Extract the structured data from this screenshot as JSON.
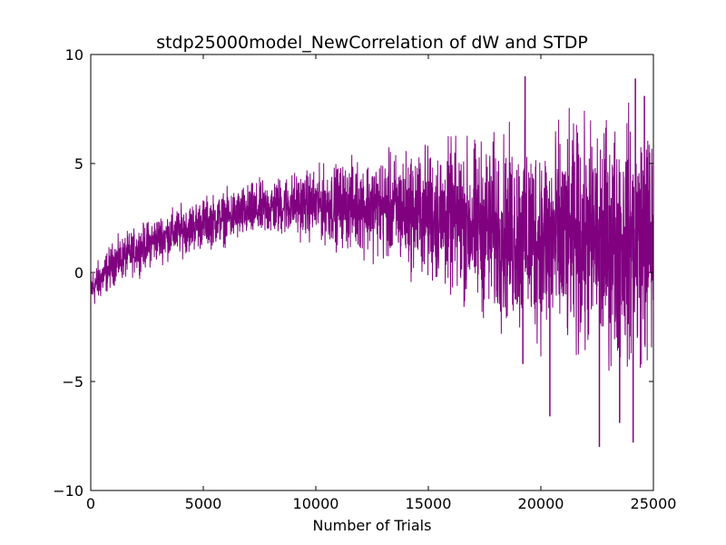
{
  "chart_data": {
    "type": "line",
    "title": "stdp25000model_NewCorrelation of dW and STDP",
    "xlabel": "Number of Trials",
    "ylabel": "",
    "xlim": [
      0,
      25000
    ],
    "ylim": [
      -10,
      10
    ],
    "xticks": [
      0,
      5000,
      10000,
      15000,
      20000,
      25000
    ],
    "yticks": [
      -10,
      -5,
      0,
      5,
      10
    ],
    "xtick_labels": [
      "0",
      "5000",
      "10000",
      "15000",
      "20000",
      "25000"
    ],
    "ytick_labels": [
      "−10",
      "−5",
      "0",
      "5",
      "10"
    ],
    "grid": false,
    "legend": "none",
    "series": [
      {
        "color": "#800080",
        "x": [
          0,
          500,
          1000,
          2000,
          3000,
          4000,
          5000,
          6000,
          7000,
          8000,
          9000,
          10000,
          11000,
          12000,
          13000,
          14000,
          15000,
          16000,
          17000,
          18000,
          19000,
          20000,
          21000,
          22000,
          23000,
          24000,
          25000
        ],
        "y": [
          -0.9,
          -0.3,
          0.2,
          0.7,
          1.1,
          1.4,
          1.7,
          2.0,
          2.2,
          2.4,
          2.55,
          2.7,
          2.8,
          2.85,
          2.9,
          2.9,
          2.85,
          2.75,
          2.6,
          2.45,
          2.3,
          2.2,
          2.1,
          1.95,
          1.85,
          1.75,
          1.7
        ],
        "envelope_upper": [
          0.4,
          0.9,
          1.6,
          2.2,
          2.8,
          3.2,
          3.6,
          3.9,
          4.2,
          4.5,
          4.8,
          5.0,
          5.3,
          5.6,
          5.8,
          6.1,
          6.4,
          6.6,
          6.8,
          7.0,
          7.2,
          7.4,
          7.6,
          7.8,
          8.0,
          8.2,
          8.3
        ],
        "envelope_lower": [
          -2.0,
          -1.4,
          -0.8,
          -0.3,
          0.2,
          0.5,
          0.8,
          1.0,
          1.2,
          1.3,
          1.3,
          1.1,
          0.8,
          0.5,
          0.1,
          -0.4,
          -1.0,
          -1.6,
          -2.3,
          -3.0,
          -3.6,
          -4.1,
          -4.5,
          -4.8,
          -5.0,
          -5.2,
          -5.3
        ],
        "extremes": [
          {
            "x": 19300,
            "y": 9.0
          },
          {
            "x": 24200,
            "y": 8.9
          },
          {
            "x": 24600,
            "y": 8.1
          },
          {
            "x": 19200,
            "y": -4.2
          },
          {
            "x": 20400,
            "y": -6.6
          },
          {
            "x": 22600,
            "y": -8.0
          },
          {
            "x": 23500,
            "y": -6.9
          },
          {
            "x": 24100,
            "y": -7.8
          }
        ]
      }
    ]
  }
}
